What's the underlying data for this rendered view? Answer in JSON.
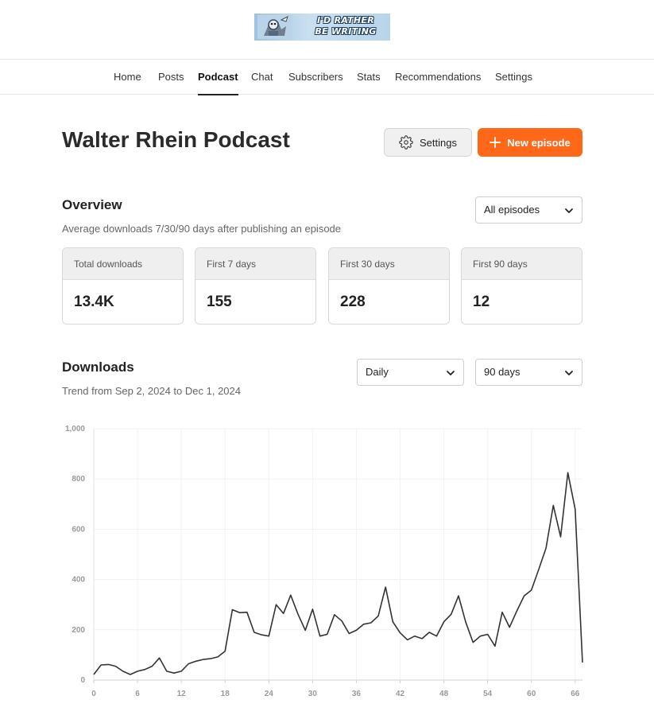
{
  "logo": {
    "line1": "I'D RATHER",
    "line2": "BE WRITING",
    "icon": "robot-mascot-icon"
  },
  "nav": {
    "items": [
      {
        "label": "Home",
        "active": false
      },
      {
        "label": "Posts",
        "active": false
      },
      {
        "label": "Podcast",
        "active": true
      },
      {
        "label": "Chat",
        "active": false
      },
      {
        "label": "Subscribers",
        "active": false
      },
      {
        "label": "Stats",
        "active": false
      },
      {
        "label": "Recommendations",
        "active": false
      },
      {
        "label": "Settings",
        "active": false
      }
    ]
  },
  "header": {
    "title": "Walter Rhein Podcast",
    "settings_label": "Settings",
    "new_episode_label": "New episode",
    "accent_color": "#ff6719"
  },
  "overview": {
    "title": "Overview",
    "subtitle": "Average downloads 7/30/90 days after publishing an episode",
    "episode_filter": "All episodes",
    "cards": [
      {
        "label": "Total downloads",
        "value": "13.4K"
      },
      {
        "label": "First 7 days",
        "value": "155"
      },
      {
        "label": "First 30 days",
        "value": "228"
      },
      {
        "label": "First 90 days",
        "value": "12"
      }
    ]
  },
  "downloads": {
    "title": "Downloads",
    "subtitle": "Trend from Sep 2, 2024 to Dec 1, 2024",
    "interval": "Daily",
    "range": "90 days"
  },
  "chart_data": {
    "type": "line",
    "title": "",
    "xlabel": "",
    "ylabel": "",
    "xlim": [
      0,
      67
    ],
    "ylim": [
      0,
      1000
    ],
    "x_ticks": [
      0,
      6,
      12,
      18,
      24,
      30,
      36,
      42,
      48,
      54,
      60,
      66
    ],
    "y_ticks": [
      {
        "value": 0,
        "label": "0"
      },
      {
        "value": 200,
        "label": "200"
      },
      {
        "value": 400,
        "label": "400"
      },
      {
        "value": 600,
        "label": "600"
      },
      {
        "value": 800,
        "label": "800"
      },
      {
        "value": 1000,
        "label": "1,000"
      }
    ],
    "grid": true,
    "line_color": "#333333",
    "series": [
      {
        "values": [
          22,
          60,
          62,
          55,
          35,
          22,
          35,
          42,
          55,
          88,
          35,
          28,
          35,
          65,
          75,
          82,
          85,
          92,
          115,
          280,
          268,
          270,
          190,
          180,
          175,
          300,
          265,
          338,
          262,
          198,
          282,
          175,
          182,
          260,
          235,
          185,
          198,
          222,
          228,
          255,
          370,
          232,
          188,
          160,
          175,
          165,
          190,
          175,
          232,
          262,
          335,
          230,
          150,
          175,
          182,
          135,
          270,
          210,
          275,
          335,
          358,
          440,
          525,
          695,
          570,
          825,
          680,
          70
        ]
      }
    ]
  }
}
